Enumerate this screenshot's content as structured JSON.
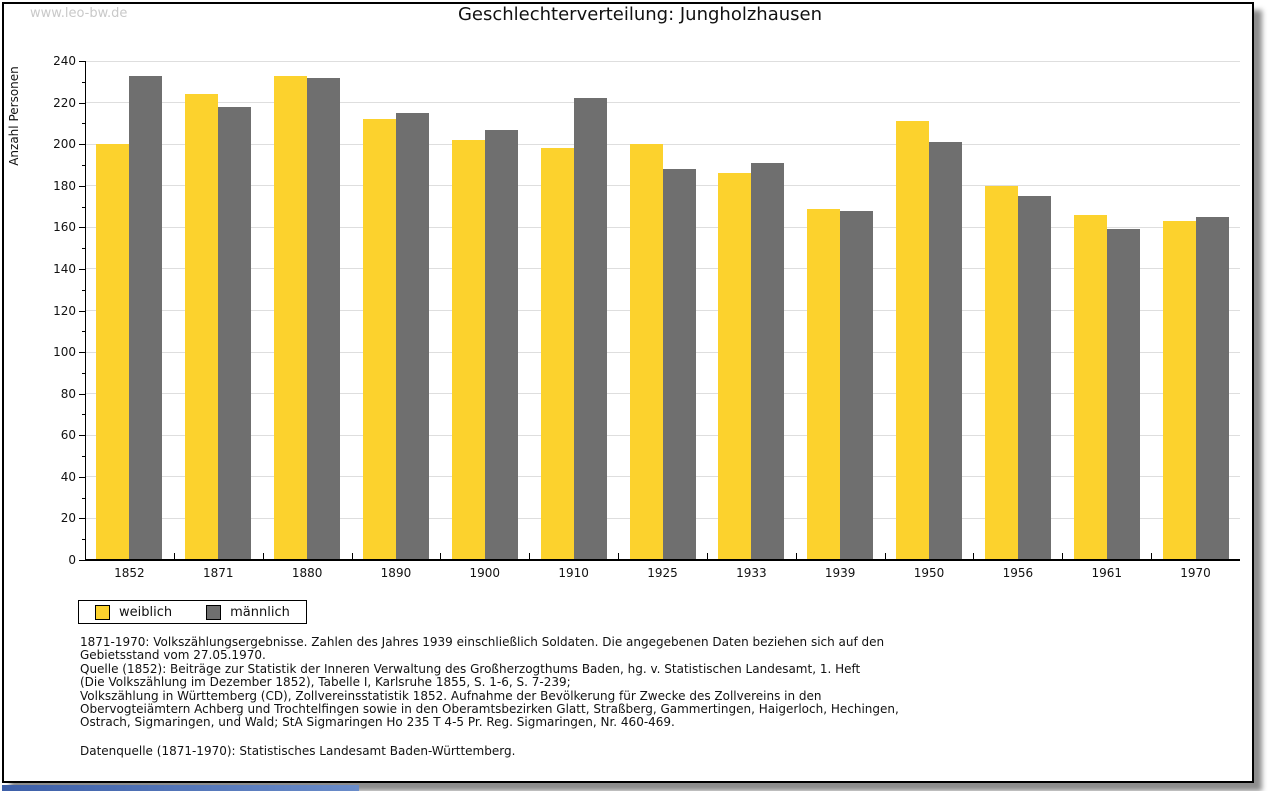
{
  "header": {
    "watermark": "www.leo-bw.de",
    "title": "Geschlechterverteilung: Jungholzhausen"
  },
  "chart_data": {
    "type": "bar",
    "title": "Geschlechterverteilung: Jungholzhausen",
    "ylabel": "Anzahl Personen",
    "xlabel": "",
    "ylim": [
      0,
      240
    ],
    "ytick_interval": 20,
    "yminor_interval": 10,
    "grid": true,
    "legend_position": "below-left",
    "categories": [
      "1852",
      "1871",
      "1880",
      "1890",
      "1900",
      "1910",
      "1925",
      "1933",
      "1939",
      "1950",
      "1956",
      "1961",
      "1970"
    ],
    "series": [
      {
        "name": "weiblich",
        "color": "#FCD22D",
        "values": [
          200,
          224,
          233,
          212,
          202,
          198,
          200,
          186,
          169,
          211,
          180,
          166,
          163
        ]
      },
      {
        "name": "männlich",
        "color": "#6F6F6F",
        "values": [
          233,
          218,
          232,
          215,
          207,
          222,
          188,
          191,
          168,
          201,
          175,
          159,
          165
        ]
      }
    ]
  },
  "legend": {
    "items": [
      {
        "label": "weiblich",
        "color": "#FCD22D"
      },
      {
        "label": "männlich",
        "color": "#6F6F6F"
      }
    ]
  },
  "footnotes": {
    "lines": [
      "1871-1970: Volkszählungsergebnisse. Zahlen des Jahres 1939 einschließlich Soldaten. Die angegebenen Daten beziehen sich auf den",
      "Gebietsstand vom 27.05.1970.",
      "Quelle (1852): Beiträge zur Statistik der Inneren Verwaltung des Großherzogthums Baden, hg. v. Statistischen Landesamt, 1. Heft",
      "(Die Volkszählung im Dezember 1852), Tabelle I, Karlsruhe 1855, S. 1-6, S. 7-239;",
      "Volkszählung in Württemberg (CD), Zollvereinsstatistik 1852. Aufnahme der Bevölkerung für Zwecke des Zollvereins in den",
      "Obervogteiämtern Achberg und Trochtelfingen sowie in den Oberamtsbezirken Glatt, Straßberg, Gammertingen, Haigerloch, Hechingen,",
      "Ostrach, Sigmaringen, und Wald; StA Sigmaringen Ho 235 T 4-5 Pr. Reg. Sigmaringen, Nr. 460-469."
    ],
    "datasource": "Datenquelle (1871-1970): Statistisches Landesamt Baden-Württemberg."
  },
  "colors": {
    "weiblich": "#FCD22D",
    "maennlich": "#6F6F6F",
    "gridline": "#DEDEDE",
    "watermark": "#C9C9C9",
    "axis": "#000000",
    "frame_border": "#000000",
    "footer_bar_left": "#3D5FA8",
    "footer_bar_right": "#6A8CC9"
  }
}
